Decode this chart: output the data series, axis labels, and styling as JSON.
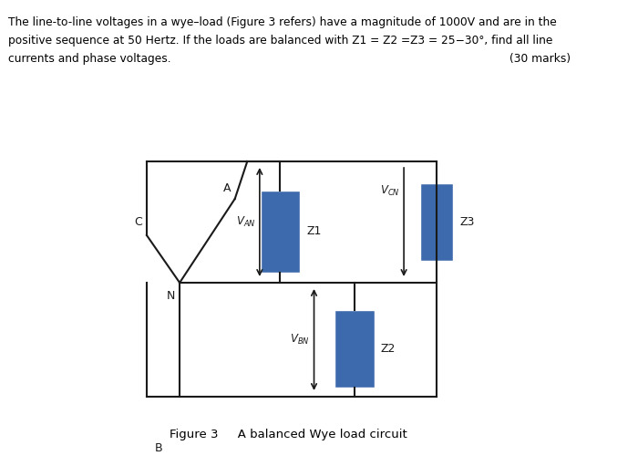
{
  "background_color": "#ffffff",
  "text_color": "#000000",
  "problem_text_line1": "The line-to-line voltages in a wye–load (Figure 3 refers) have a magnitude of 1000V and are in the",
  "problem_text_line2": "positive sequence at 50 Hertz. If the loads are balanced with Z1 = Z2 =Z3 = 25−30°, find all line",
  "problem_text_line3": "currents and phase voltages.",
  "marks_text": "(30 marks)",
  "caption": "Figure 3     A balanced Wye load circuit",
  "box_color": "#3d6aad",
  "line_color": "#1a1a1a",
  "label_N": "N",
  "label_A": "A",
  "label_B": "B",
  "label_C": "C",
  "label_Z1": "Z1",
  "label_Z2": "Z2",
  "label_Z3": "Z3"
}
